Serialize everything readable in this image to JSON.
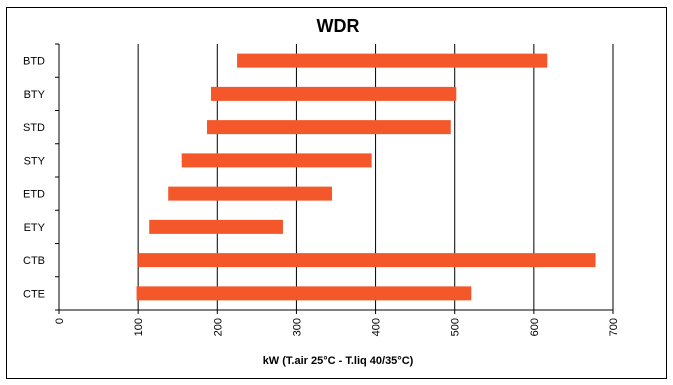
{
  "chart_data": {
    "type": "bar",
    "orientation": "horizontal",
    "title": "WDR",
    "xlabel": "kW (T.air 25°C - T.liq 40/35°C)",
    "ylabel": "",
    "xlim": [
      0,
      700
    ],
    "xticks": [
      0,
      100,
      200,
      300,
      400,
      500,
      600,
      700
    ],
    "grid": "vertical",
    "legend": "none",
    "bar_color": "#f4582a",
    "categories": [
      "BTD",
      "BTY",
      "STD",
      "STY",
      "ETD",
      "ETY",
      "CTB",
      "CTE"
    ],
    "ranges": [
      [
        225,
        617
      ],
      [
        192,
        502
      ],
      [
        187,
        495
      ],
      [
        155,
        395
      ],
      [
        138,
        345
      ],
      [
        114,
        283
      ],
      [
        100,
        678
      ],
      [
        98,
        521
      ]
    ]
  }
}
